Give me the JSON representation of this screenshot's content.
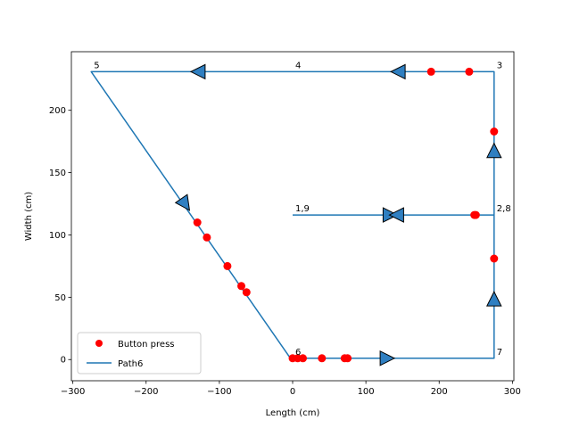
{
  "chart_data": {
    "type": "line",
    "xlabel": "Length (cm)",
    "ylabel": "Width (cm)",
    "xlim": [
      -302,
      302
    ],
    "ylim": [
      -17,
      247
    ],
    "xticks": [
      -300,
      -200,
      -100,
      0,
      100,
      200,
      300
    ],
    "yticks": [
      0,
      50,
      100,
      150,
      200
    ],
    "grid": false,
    "legend": {
      "placement": "lower-left",
      "entries": [
        "Button press",
        "Path6"
      ]
    },
    "series": [
      {
        "name": "Path6",
        "kind": "line",
        "color": "#1f77b4",
        "x": [
          0,
          275,
          275,
          275,
          -275,
          -3,
          275,
          275,
          0
        ],
        "y": [
          116,
          116,
          116,
          231,
          231,
          1,
          1,
          116,
          116
        ]
      },
      {
        "name": "Button press",
        "kind": "scatter",
        "color": "#ff0000",
        "x": [
          -130,
          -117,
          -89,
          -70,
          -63,
          0,
          7,
          14,
          40,
          71,
          75,
          248,
          250,
          275,
          275,
          241,
          189
        ],
        "y": [
          110,
          98,
          75,
          59,
          54,
          1,
          1,
          1,
          1,
          1,
          1,
          116,
          116,
          81,
          183,
          231,
          231
        ]
      },
      {
        "name": "direction-arrows",
        "kind": "arrows",
        "color": "#2f7fc1",
        "points": [
          {
            "x": 132,
            "y": 116,
            "dir": "right"
          },
          {
            "x": 143,
            "y": 116,
            "dir": "left"
          },
          {
            "x": 275,
            "y": 167,
            "dir": "up"
          },
          {
            "x": 275,
            "y": 48,
            "dir": "up"
          },
          {
            "x": 145,
            "y": 231,
            "dir": "left"
          },
          {
            "x": -128,
            "y": 231,
            "dir": "left"
          },
          {
            "x": -147,
            "y": 125,
            "dir": "down-right"
          },
          {
            "x": 128,
            "y": 1,
            "dir": "right"
          }
        ]
      }
    ],
    "annotations": [
      {
        "text": "5",
        "x": -275,
        "y": 231
      },
      {
        "text": "4",
        "x": 0,
        "y": 231
      },
      {
        "text": "3",
        "x": 275,
        "y": 231
      },
      {
        "text": "1,9",
        "x": 0,
        "y": 116
      },
      {
        "text": "2,8",
        "x": 275,
        "y": 116
      },
      {
        "text": "6",
        "x": 0,
        "y": 1
      },
      {
        "text": "7",
        "x": 275,
        "y": 1
      }
    ]
  }
}
